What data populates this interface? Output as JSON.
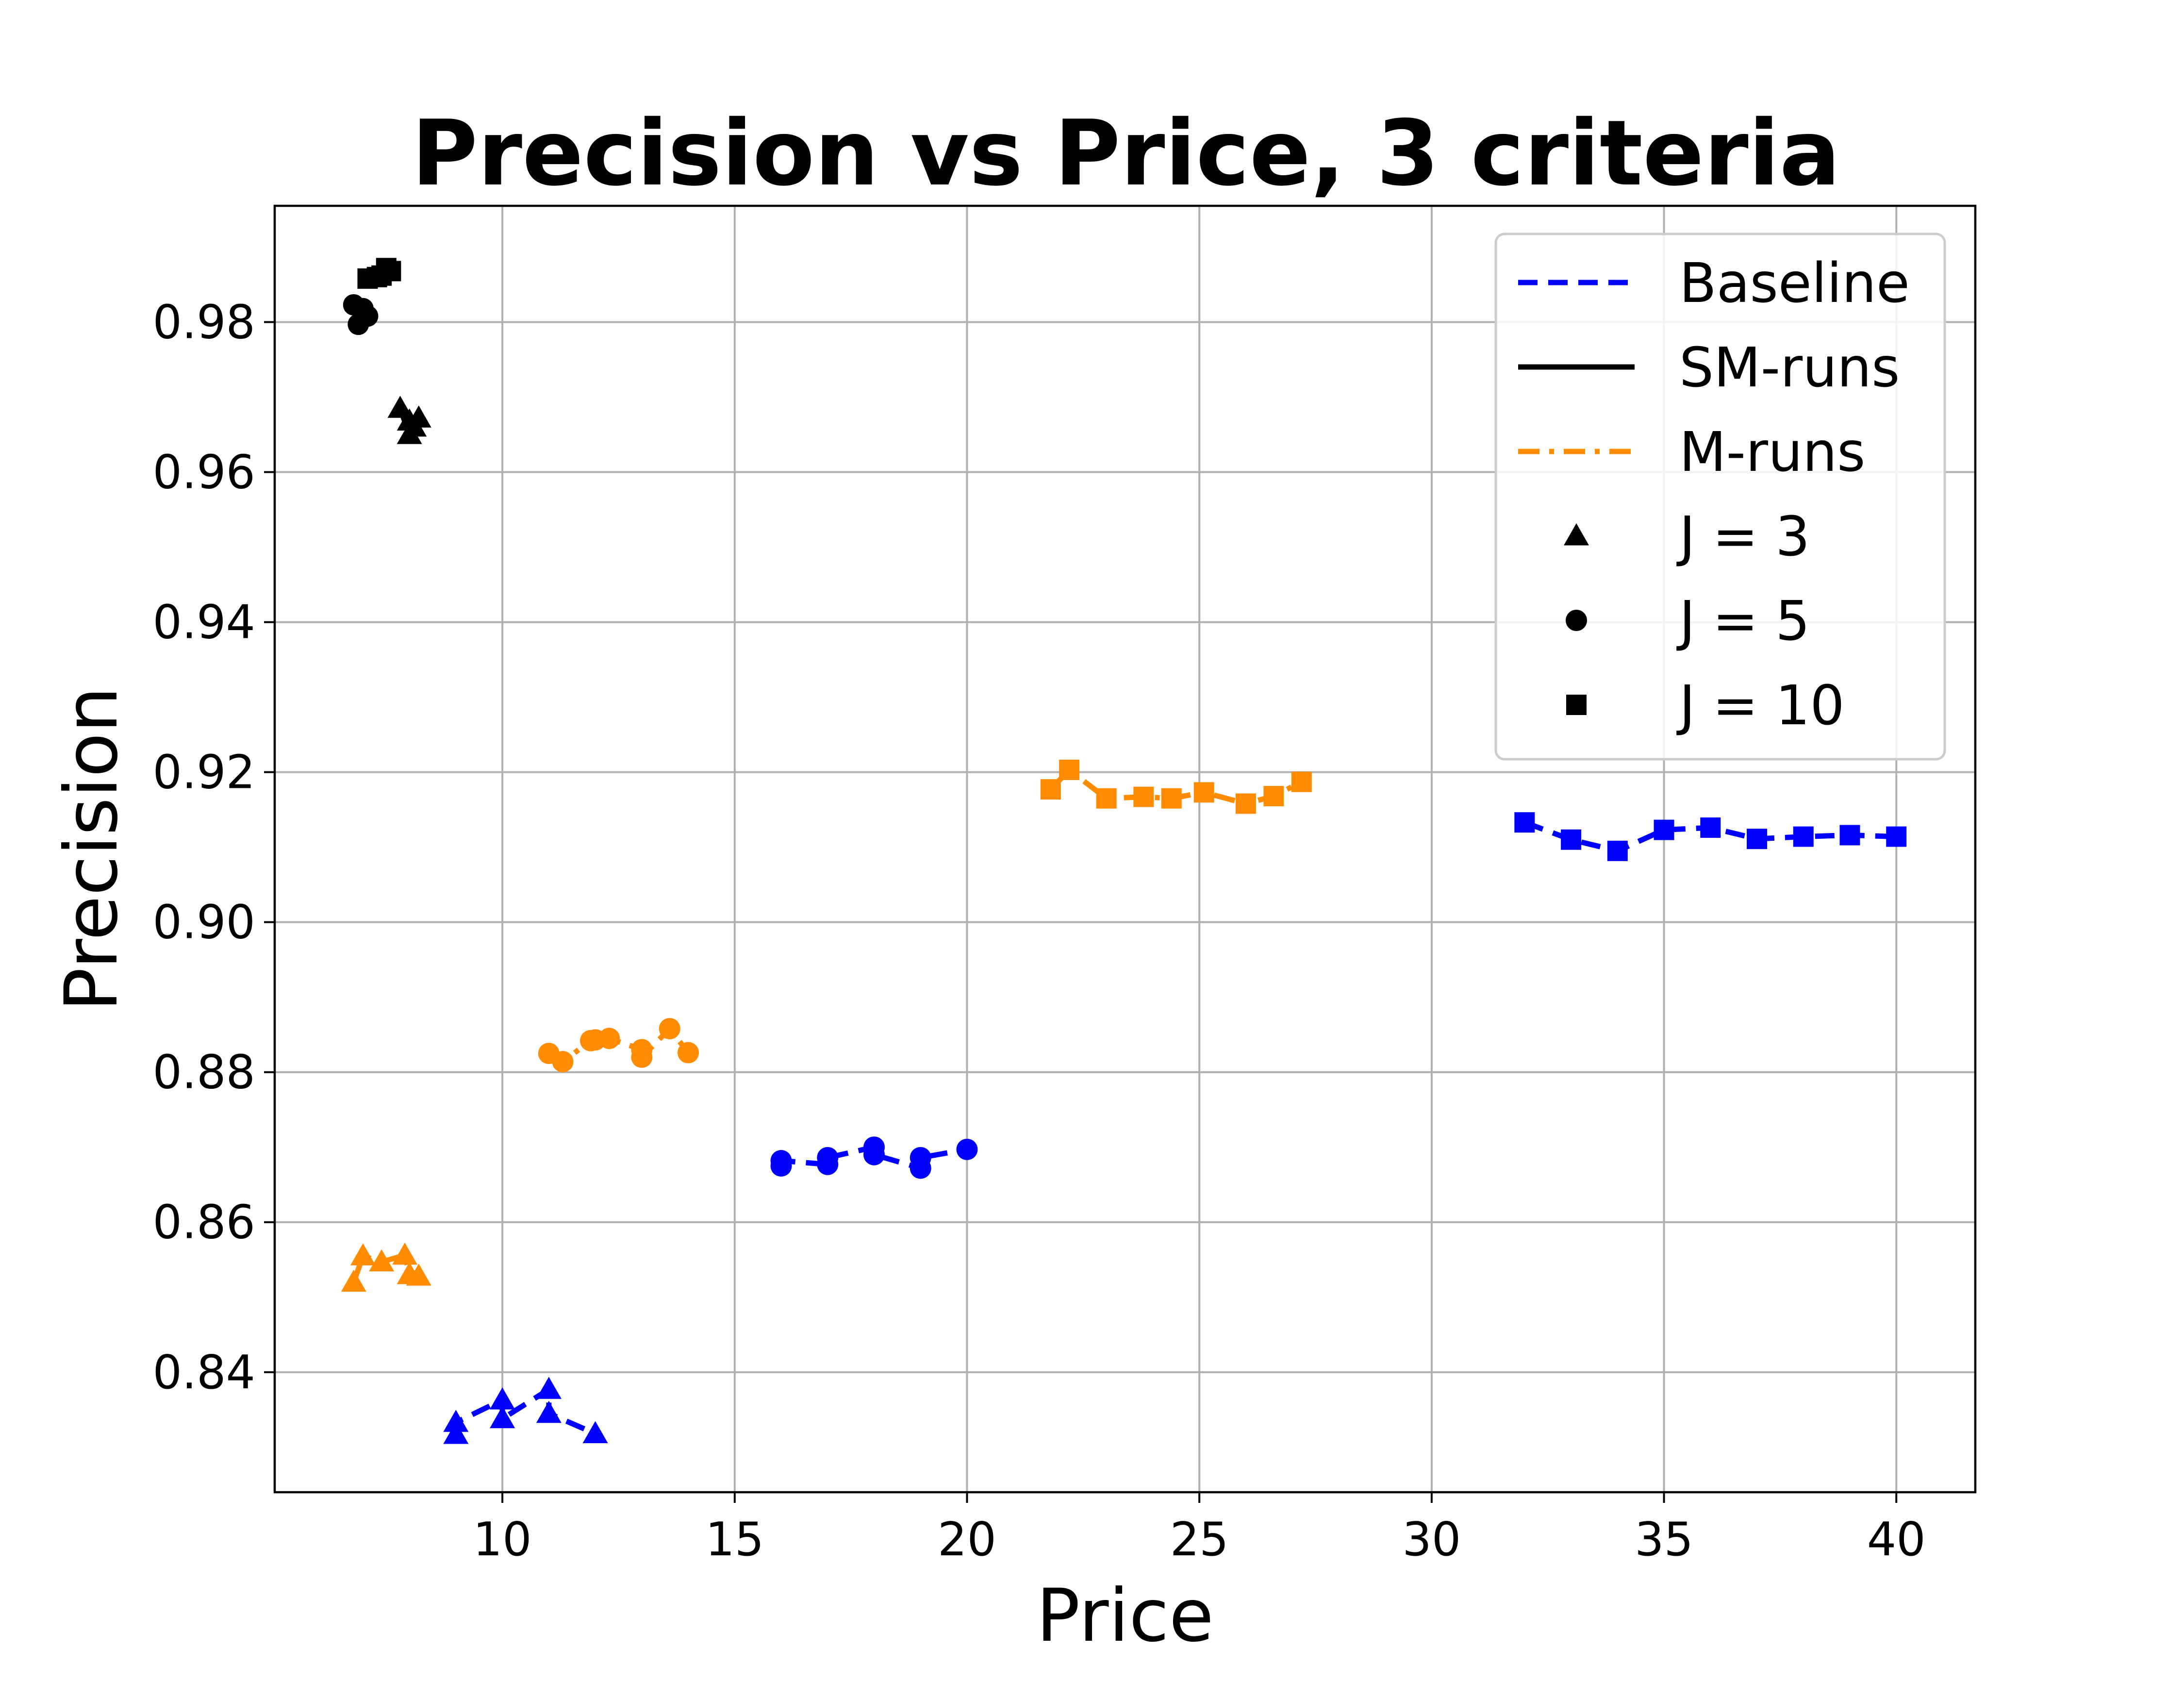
{
  "chart_data": {
    "type": "line",
    "title": "Precision vs Price, 3 criteria",
    "xlabel": "Price",
    "ylabel": "Precision",
    "xlim": [
      5.1,
      41.7
    ],
    "ylim": [
      0.824,
      0.9955
    ],
    "xticks": [
      10,
      15,
      20,
      25,
      30,
      35,
      40
    ],
    "yticks": [
      0.84,
      0.86,
      0.88,
      0.9,
      0.92,
      0.94,
      0.96,
      0.98
    ],
    "xtick_labels": [
      "10",
      "15",
      "20",
      "25",
      "30",
      "35",
      "40"
    ],
    "ytick_labels": [
      "0.84",
      "0.86",
      "0.88",
      "0.90",
      "0.92",
      "0.94",
      "0.96",
      "0.98"
    ],
    "grid": true,
    "legend_position": "top-right",
    "legend": {
      "methods": [
        {
          "name": "Baseline",
          "color": "#0000ff",
          "style": "dashed"
        },
        {
          "name": "SM-runs",
          "color": "#000000",
          "style": "solid"
        },
        {
          "name": "M-runs",
          "color": "#ff8c00",
          "style": "dashdot"
        }
      ],
      "markers": [
        {
          "name": "J = 3",
          "marker": "triangle"
        },
        {
          "name": "J = 5",
          "marker": "circle"
        },
        {
          "name": "J = 10",
          "marker": "square"
        }
      ]
    },
    "series": [
      {
        "method": "Baseline",
        "J": 3,
        "color": "#0000ff",
        "style": "dashed",
        "marker": "triangle",
        "x": [
          9.0,
          9.0,
          10.0,
          10.0,
          11.0,
          11.0,
          12.0
        ],
        "y": [
          0.8317,
          0.8333,
          0.8363,
          0.8338,
          0.8377,
          0.8345,
          0.8318
        ]
      },
      {
        "method": "Baseline",
        "J": 5,
        "color": "#0000ff",
        "style": "dashed",
        "marker": "circle",
        "x": [
          16.0,
          16.0,
          17.0,
          17.0,
          18.0,
          18.0,
          19.0,
          19.0,
          20.0
        ],
        "y": [
          0.8675,
          0.8682,
          0.8677,
          0.8686,
          0.87,
          0.869,
          0.8672,
          0.8686,
          0.8697
        ]
      },
      {
        "method": "Baseline",
        "J": 10,
        "color": "#0000ff",
        "style": "dashed",
        "marker": "square",
        "x": [
          32.0,
          33.0,
          34.0,
          35.0,
          36.0,
          37.0,
          38.0,
          39.0,
          40.0
        ],
        "y": [
          0.9133,
          0.911,
          0.9095,
          0.9123,
          0.9126,
          0.9111,
          0.9114,
          0.9116,
          0.9114
        ]
      },
      {
        "method": "SM-runs",
        "J": 3,
        "color": "#000000",
        "style": "solid",
        "marker": "triangle",
        "x": [
          7.8,
          8.0,
          8.0,
          8.1,
          8.2
        ],
        "y": [
          0.9685,
          0.965,
          0.9668,
          0.966,
          0.9672
        ]
      },
      {
        "method": "SM-runs",
        "J": 5,
        "color": "#000000",
        "style": "solid",
        "marker": "circle",
        "x": [
          6.8,
          6.9,
          7.0,
          7.1,
          7.0
        ],
        "y": [
          0.9823,
          0.9797,
          0.9818,
          0.9808,
          0.9813
        ]
      },
      {
        "method": "SM-runs",
        "J": 10,
        "color": "#000000",
        "style": "solid",
        "marker": "square",
        "x": [
          7.1,
          7.3,
          7.5,
          7.6,
          7.4
        ],
        "y": [
          0.9858,
          0.986,
          0.9872,
          0.9868,
          0.9862
        ]
      },
      {
        "method": "M-runs",
        "J": 3,
        "color": "#ff8c00",
        "style": "dashdot",
        "marker": "triangle",
        "x": [
          6.8,
          7.0,
          7.4,
          7.9,
          8.0,
          8.2
        ],
        "y": [
          0.852,
          0.8555,
          0.8547,
          0.8556,
          0.853,
          0.8528
        ]
      },
      {
        "method": "M-runs",
        "J": 5,
        "color": "#ff8c00",
        "style": "dashdot",
        "marker": "circle",
        "x": [
          11.0,
          11.3,
          11.9,
          12.0,
          12.3,
          13.0,
          13.0,
          13.6,
          14.0
        ],
        "y": [
          0.8825,
          0.8814,
          0.8842,
          0.8843,
          0.8845,
          0.883,
          0.882,
          0.8858,
          0.8826
        ]
      },
      {
        "method": "M-runs",
        "J": 10,
        "color": "#ff8c00",
        "style": "dashdot",
        "marker": "square",
        "x": [
          21.8,
          22.2,
          23.0,
          23.8,
          24.4,
          25.1,
          26.0,
          26.6,
          27.2
        ],
        "y": [
          0.9177,
          0.9203,
          0.9165,
          0.9167,
          0.9165,
          0.9173,
          0.9158,
          0.9168,
          0.9187
        ]
      }
    ]
  }
}
